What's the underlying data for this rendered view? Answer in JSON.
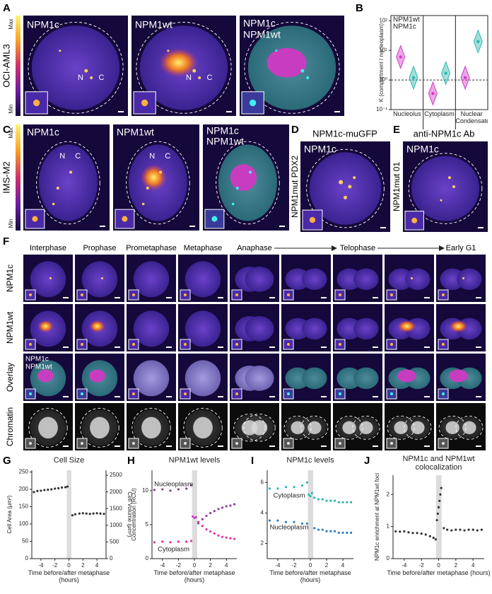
{
  "panel_labels": [
    "A",
    "B",
    "C",
    "D",
    "E",
    "F",
    "G",
    "H",
    "I",
    "J"
  ],
  "panel_a": {
    "row_label": "OCI-AML3",
    "scale": [
      "Max",
      "Min"
    ],
    "image_titles": [
      "NPM1c",
      "NPM1wt"
    ],
    "overlay": [
      "NPM1c",
      "NPM1wt"
    ],
    "markers": [
      "N",
      "C"
    ]
  },
  "panel_c": {
    "row_label": "IMS-M2",
    "scale": [
      "Max",
      "Min"
    ],
    "image_titles": [
      "NPM1c",
      "NPM1wt"
    ],
    "overlay": [
      "NPM1c",
      "NPM1wt"
    ],
    "markers": [
      "N",
      "C"
    ]
  },
  "panel_d": {
    "title": "NPM1c-muGFP",
    "side_label": "NPM1mut PDX2",
    "image_title": "NPM1c"
  },
  "panel_e": {
    "title": "anti-NPM1c Ab",
    "side_label": "NPM1mut 01",
    "image_title": "NPM1c"
  },
  "panel_f": {
    "phases": [
      "Interphase",
      "Prophase",
      "Prometaphase",
      "Metaphase",
      "Anaphase",
      "Telophase",
      "Early G1"
    ],
    "rows": [
      "NPM1c",
      "NPM1wt",
      "Overlay",
      "Chromatin"
    ],
    "overlay": [
      "NPM1c",
      "NPM1wt"
    ]
  },
  "chart_data": [
    {
      "type": "violin",
      "ylabel": "K (compartment / nucleoplasm)",
      "categories": [
        "Nucleolus",
        "Cytoplasm",
        "Nuclear Condensate"
      ],
      "series": [
        {
          "name": "NPM1wt",
          "color": "#d23cc8",
          "values": [
            6,
            0.35,
            1.2
          ]
        },
        {
          "name": "NPM1c",
          "color": "#2cb8b0",
          "values": [
            1.2,
            1.7,
            20
          ]
        }
      ],
      "log_scale": true,
      "ylim": [
        0.1,
        150
      ],
      "yticks": [
        {
          "value": 0.1,
          "label": "10⁻¹"
        },
        {
          "value": 1,
          "label": "10⁰"
        },
        {
          "value": 10,
          "label": "10¹"
        },
        {
          "value": 100,
          "label": "10²"
        }
      ],
      "reference": 1,
      "legend": "upper left"
    },
    {
      "type": "scatter",
      "title": "Cell Size",
      "xlabel": "Time before/after metaphase (hours)",
      "ylabel": "Cell Area (μm²)",
      "y2label": "Cell Volume (μm³)",
      "xlim": [
        -5.3,
        5.3
      ],
      "xticks": [
        -4,
        -2,
        0,
        2,
        4
      ],
      "ylim": [
        0,
        255
      ],
      "yticks": [
        0,
        50,
        100,
        150,
        200,
        250
      ],
      "y2lim": [
        0,
        2650
      ],
      "y2ticks": [
        0,
        500,
        1000,
        1500,
        2000,
        2500
      ],
      "band": [
        -0.3,
        0.35
      ],
      "series": [
        {
          "color": "#333333",
          "x": [
            -5,
            -4.5,
            -4,
            -3.5,
            -3,
            -2.5,
            -2,
            -1.5,
            -1,
            -0.5,
            -0.2,
            0.5,
            0.9,
            1.5,
            2,
            2.5,
            3,
            3.5,
            4,
            4.5,
            5
          ],
          "values": [
            192,
            195,
            196,
            198,
            199,
            200,
            202,
            203,
            205,
            206,
            208,
            125,
            128,
            130,
            131,
            130,
            129,
            130,
            131,
            130,
            129
          ]
        }
      ]
    },
    {
      "type": "scatter",
      "title": "NPM1wt levels",
      "xlabel": "Time before/after metaphase (hours)",
      "ylabel": "Concentration (RCU)",
      "xlim": [
        -5.3,
        5.3
      ],
      "xticks": [
        -4,
        -2,
        0,
        2,
        4
      ],
      "ylim": [
        0,
        13
      ],
      "yticks": [
        0,
        5,
        10
      ],
      "band": [
        -0.3,
        0.35
      ],
      "series": [
        {
          "name": "Nucleoplasm",
          "color": "#8e3aa0",
          "x": [
            -5,
            -4,
            -3,
            -2,
            -1,
            -0.4,
            0.5,
            1,
            1.5,
            2,
            2.5,
            3,
            3.5,
            4,
            4.5,
            5
          ],
          "values": [
            10.1,
            10.2,
            10,
            10.2,
            10.3,
            10.8,
            5.2,
            5.8,
            6.3,
            6.7,
            7,
            7.3,
            7.5,
            7.7,
            7.8,
            8
          ]
        },
        {
          "name": "Cytoplasm",
          "color": "#e0359a",
          "x": [
            -5,
            -4,
            -3,
            -2,
            -1,
            -0.4,
            0.5,
            1,
            1.5,
            2,
            2.5,
            3,
            3.5,
            4,
            4.5,
            5
          ],
          "values": [
            2.4,
            2.5,
            2.4,
            2.5,
            2.5,
            2.6,
            5.4,
            4.8,
            4.3,
            4,
            3.7,
            3.4,
            3.2,
            3.1,
            3,
            2.9
          ]
        },
        {
          "color": "#d23cc8",
          "x": [
            -0.2,
            0,
            0.2
          ],
          "values": [
            6.2,
            6,
            6.1
          ]
        }
      ]
    },
    {
      "type": "scatter",
      "title": "NPM1c levels",
      "xlabel": "Time before/after metaphase (hours)",
      "xlim": [
        -5.3,
        5.3
      ],
      "xticks": [
        -4,
        -2,
        0,
        2,
        4
      ],
      "ylim": [
        1,
        6.8
      ],
      "yticks": [
        2,
        4,
        6
      ],
      "band": [
        -0.3,
        0.35
      ],
      "series": [
        {
          "name": "Cytoplasm",
          "color": "#2cb8b0",
          "x": [
            -5,
            -4,
            -3,
            -2,
            -1,
            -0.4,
            0.5,
            1,
            1.5,
            2,
            2.5,
            3,
            3.5,
            4,
            4.5,
            5
          ],
          "values": [
            5.6,
            5.6,
            5.7,
            5.7,
            5.8,
            6,
            5,
            4.9,
            4.9,
            4.8,
            4.8,
            4.8,
            4.7,
            4.7,
            4.7,
            4.7
          ]
        },
        {
          "name": "Nucleoplasm",
          "color": "#2f7fc1",
          "x": [
            -5,
            -4,
            -3,
            -2,
            -1,
            -0.4,
            0.5,
            1,
            1.5,
            2,
            2.5,
            3,
            3.5,
            4,
            4.5,
            5
          ],
          "values": [
            3.5,
            3.5,
            3.4,
            3.4,
            3.3,
            3.3,
            3,
            2.9,
            2.9,
            2.8,
            2.8,
            2.8,
            2.7,
            2.7,
            2.7,
            2.7
          ]
        },
        {
          "color": "#2cb8b0",
          "x": [
            -0.2,
            0,
            0.2
          ],
          "values": [
            5.2,
            5.1,
            5.3
          ]
        }
      ]
    },
    {
      "type": "scatter",
      "title": "NPM1c and NPM1wt colocalization",
      "xlabel": "Time before/after metaphase (hours)",
      "ylabel": "NPM1c enrichment at NPM1wt foci",
      "xlim": [
        -5.3,
        5.3
      ],
      "xticks": [
        -4,
        -2,
        0,
        2,
        4
      ],
      "ylim": [
        0,
        2.6
      ],
      "yticks": [
        0,
        1,
        2
      ],
      "band": [
        -0.3,
        0.35
      ],
      "series": [
        {
          "color": "#333333",
          "x": [
            -5,
            -4.5,
            -4,
            -3.5,
            -3,
            -2.5,
            -2,
            -1.5,
            -1,
            -0.6,
            -0.35,
            -0.2,
            -0.1,
            0,
            0.1,
            0.2,
            0.3,
            0.6,
            1,
            1.5,
            2,
            2.5,
            3,
            3.5,
            4,
            4.5,
            5
          ],
          "values": [
            0.85,
            0.84,
            0.85,
            0.82,
            0.8,
            0.8,
            0.78,
            0.75,
            0.7,
            0.65,
            0.6,
            1.2,
            1.4,
            1.6,
            1.8,
            2,
            2.2,
            0.95,
            0.9,
            0.88,
            0.9,
            0.9,
            0.88,
            0.9,
            0.9,
            0.88,
            0.9
          ]
        }
      ]
    }
  ]
}
